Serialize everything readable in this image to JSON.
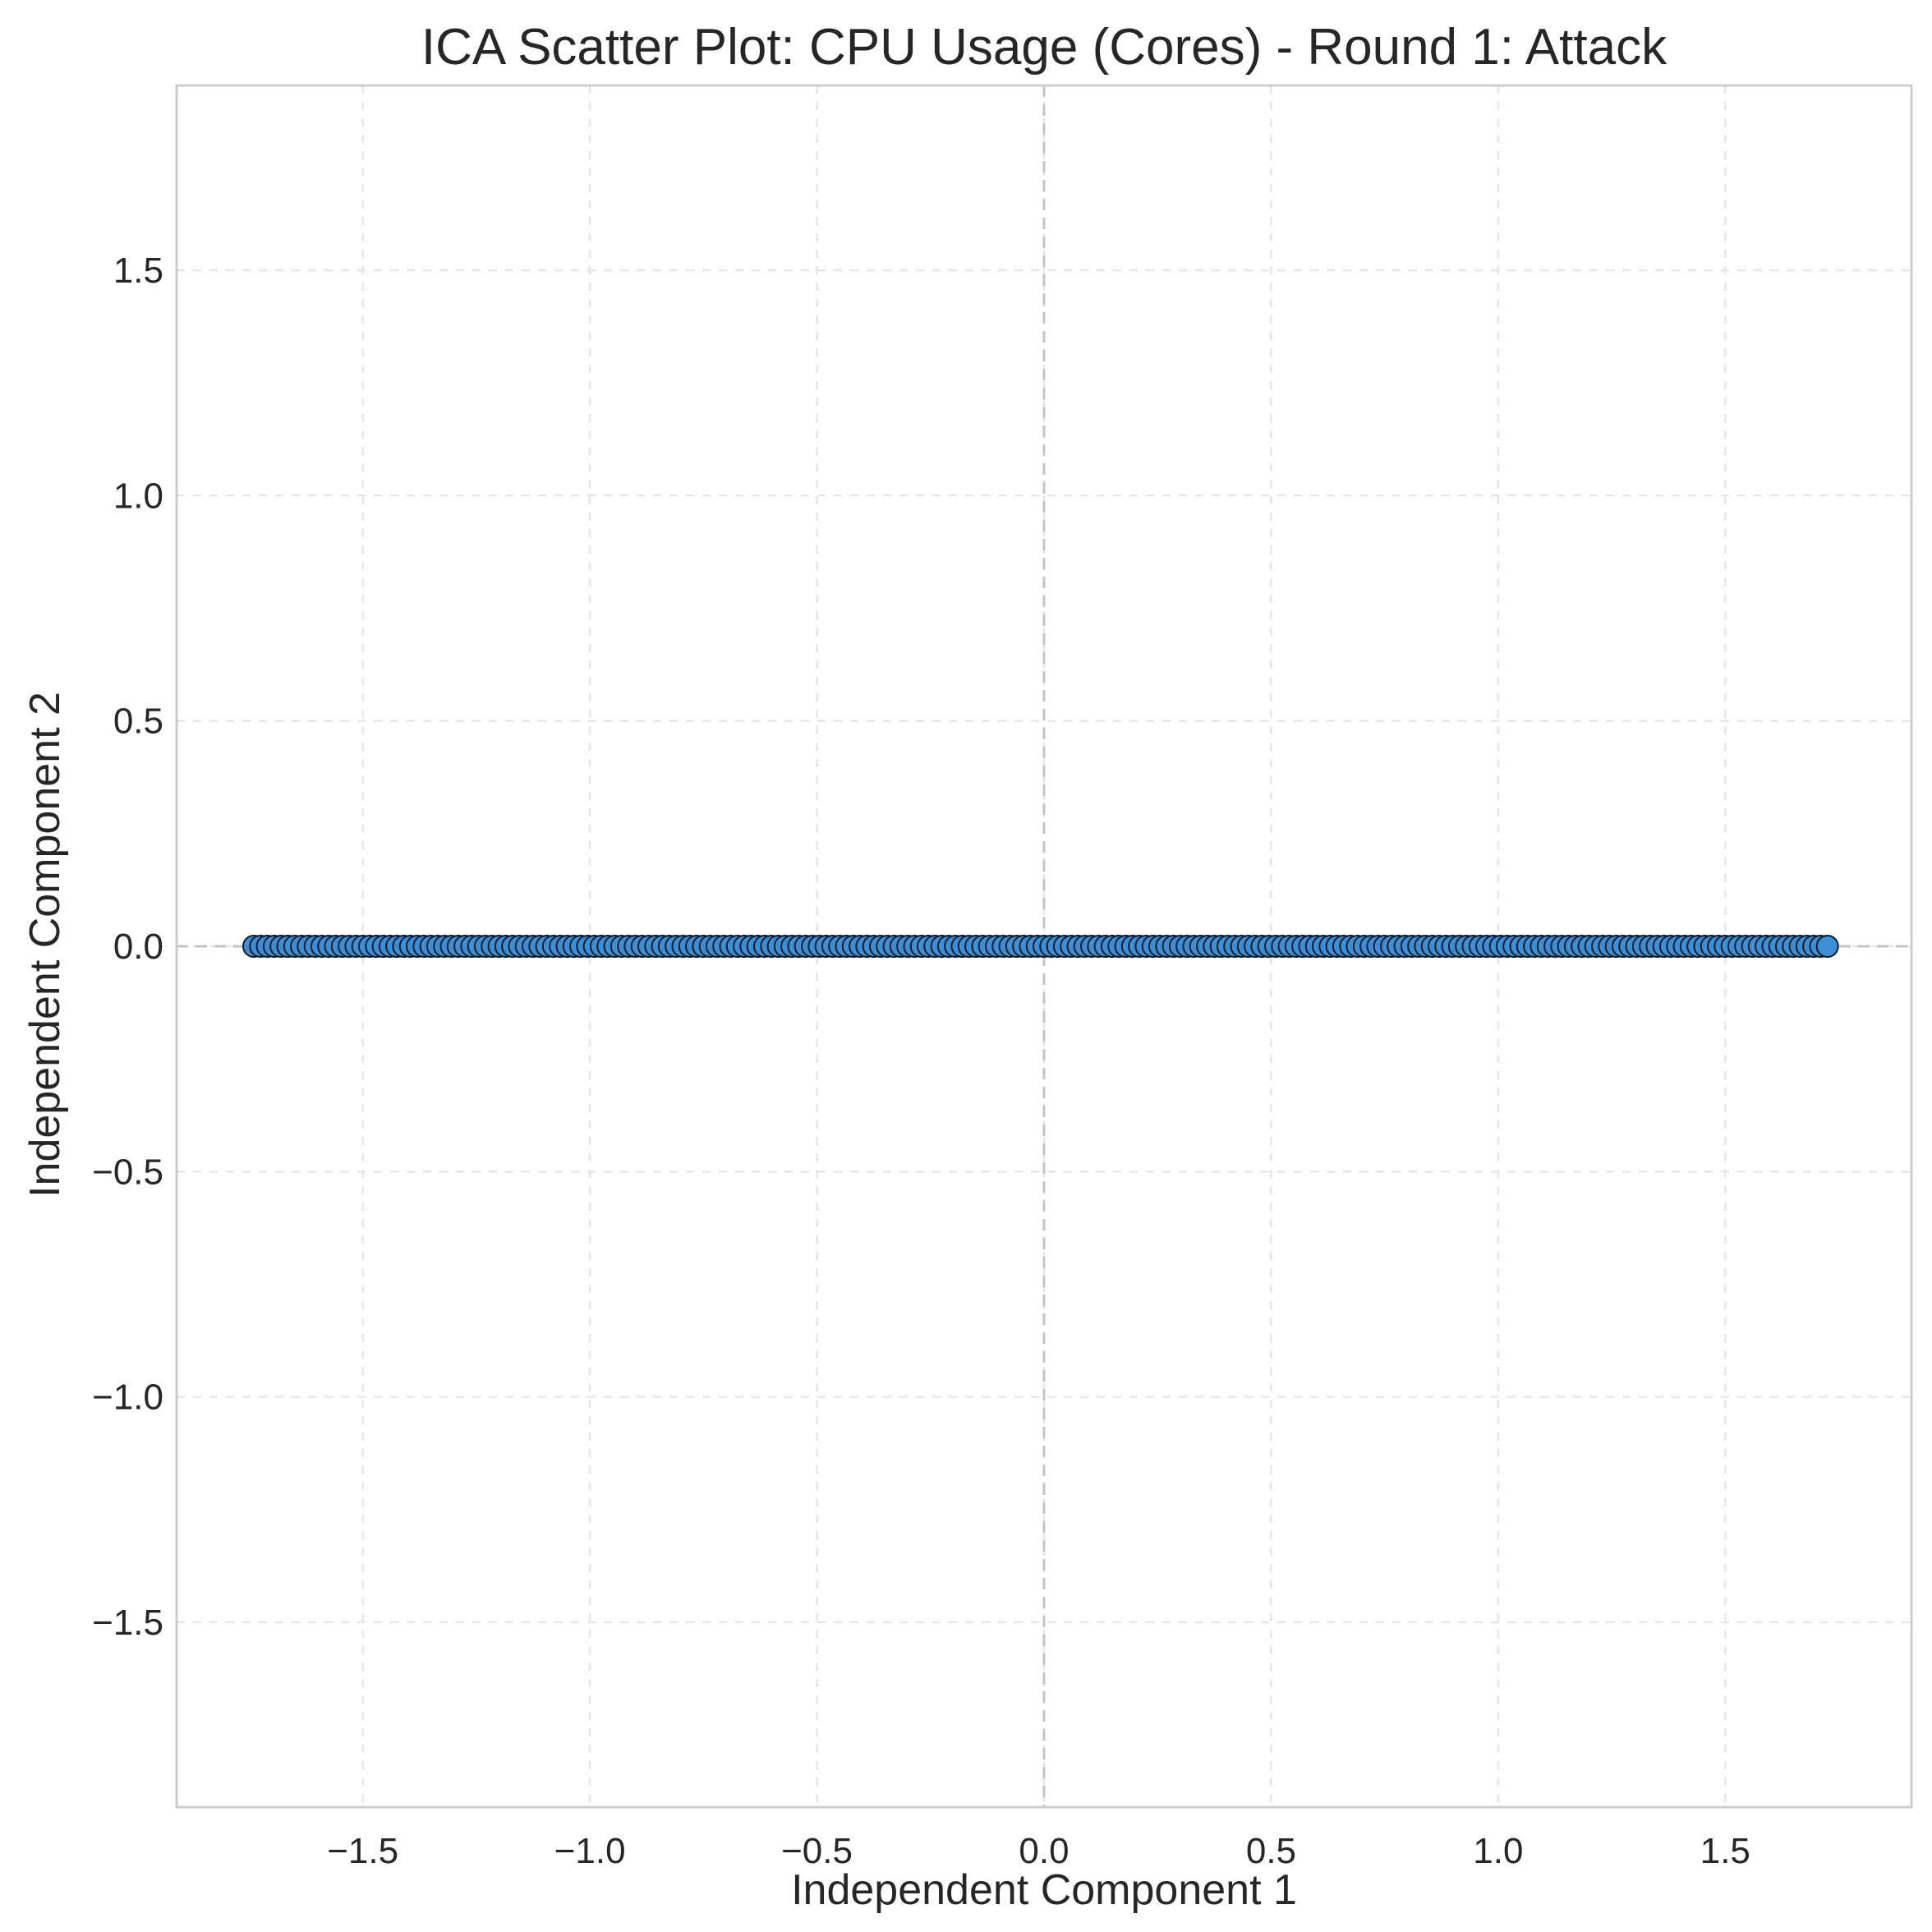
{
  "chart_data": {
    "type": "scatter",
    "title": "ICA Scatter Plot: CPU Usage (Cores) - Round 1: Attack",
    "xlabel": "Independent Component 1",
    "ylabel": "Independent Component 2",
    "xlim": [
      -1.91,
      1.91
    ],
    "ylim": [
      -1.91,
      1.91
    ],
    "xticks": [
      -1.5,
      -1.0,
      -0.5,
      0.0,
      0.5,
      1.0,
      1.5
    ],
    "yticks": [
      -1.5,
      -1.0,
      -0.5,
      0.0,
      0.5,
      1.0,
      1.5
    ],
    "xtick_labels": [
      "−1.5",
      "−1.0",
      "−0.5",
      "0.0",
      "0.5",
      "1.0",
      "1.5"
    ],
    "ytick_labels": [
      "−1.5",
      "−1.0",
      "−0.5",
      "0.0",
      "0.5",
      "1.0",
      "1.5"
    ],
    "grid": true,
    "zero_lines": true,
    "series": [
      {
        "x": [
          -1.74,
          -1.725,
          -1.71,
          -1.695,
          -1.68,
          -1.665,
          -1.65,
          -1.635,
          -1.62,
          -1.605,
          -1.59,
          -1.575,
          -1.56,
          -1.545,
          -1.53,
          -1.515,
          -1.5,
          -1.485,
          -1.47,
          -1.455,
          -1.44,
          -1.425,
          -1.41,
          -1.395,
          -1.38,
          -1.365,
          -1.35,
          -1.335,
          -1.32,
          -1.305,
          -1.29,
          -1.275,
          -1.26,
          -1.245,
          -1.23,
          -1.215,
          -1.2,
          -1.185,
          -1.17,
          -1.155,
          -1.14,
          -1.125,
          -1.11,
          -1.095,
          -1.08,
          -1.065,
          -1.05,
          -1.035,
          -1.02,
          -1.005,
          -0.99,
          -0.975,
          -0.96,
          -0.945,
          -0.93,
          -0.915,
          -0.9,
          -0.885,
          -0.87,
          -0.855,
          -0.84,
          -0.825,
          -0.81,
          -0.795,
          -0.78,
          -0.765,
          -0.75,
          -0.735,
          -0.72,
          -0.705,
          -0.69,
          -0.675,
          -0.66,
          -0.645,
          -0.63,
          -0.615,
          -0.6,
          -0.585,
          -0.57,
          -0.555,
          -0.54,
          -0.525,
          -0.51,
          -0.495,
          -0.48,
          -0.465,
          -0.45,
          -0.435,
          -0.42,
          -0.405,
          -0.39,
          -0.375,
          -0.36,
          -0.345,
          -0.33,
          -0.315,
          -0.3,
          -0.285,
          -0.27,
          -0.255,
          -0.24,
          -0.225,
          -0.21,
          -0.195,
          -0.18,
          -0.165,
          -0.15,
          -0.135,
          -0.12,
          -0.105,
          -0.09,
          -0.075,
          -0.06,
          -0.045,
          -0.03,
          -0.015,
          0.0,
          0.015,
          0.03,
          0.045,
          0.06,
          0.075,
          0.09,
          0.105,
          0.12,
          0.135,
          0.15,
          0.165,
          0.18,
          0.195,
          0.21,
          0.225,
          0.24,
          0.255,
          0.27,
          0.285,
          0.3,
          0.315,
          0.33,
          0.345,
          0.36,
          0.375,
          0.39,
          0.405,
          0.42,
          0.435,
          0.45,
          0.465,
          0.48,
          0.495,
          0.51,
          0.525,
          0.54,
          0.555,
          0.57,
          0.585,
          0.6,
          0.615,
          0.63,
          0.645,
          0.66,
          0.675,
          0.69,
          0.705,
          0.72,
          0.735,
          0.75,
          0.765,
          0.78,
          0.795,
          0.81,
          0.825,
          0.84,
          0.855,
          0.87,
          0.885,
          0.9,
          0.915,
          0.93,
          0.945,
          0.96,
          0.975,
          0.99,
          1.005,
          1.02,
          1.035,
          1.05,
          1.065,
          1.08,
          1.095,
          1.11,
          1.125,
          1.14,
          1.155,
          1.17,
          1.185,
          1.2,
          1.215,
          1.23,
          1.245,
          1.26,
          1.275,
          1.29,
          1.305,
          1.32,
          1.335,
          1.35,
          1.365,
          1.38,
          1.395,
          1.41,
          1.425,
          1.44,
          1.455,
          1.47,
          1.485,
          1.5,
          1.515,
          1.53,
          1.545,
          1.56,
          1.575,
          1.59,
          1.605,
          1.62,
          1.635,
          1.65,
          1.665,
          1.68,
          1.695,
          1.71,
          1.725
        ],
        "y_constant": 0.0,
        "color": "#3a8fd6"
      }
    ]
  }
}
